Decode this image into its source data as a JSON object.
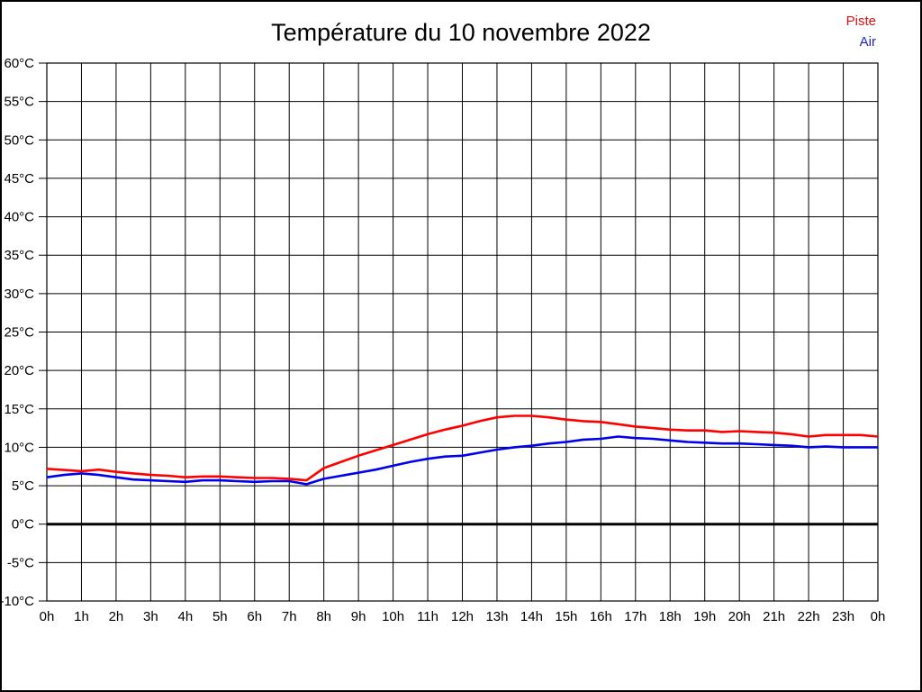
{
  "page": {
    "title": "Température du 10 novembre 2022",
    "background_color": "#ffffff",
    "border_color": "#000000"
  },
  "legend": {
    "position": "top-right",
    "items": [
      {
        "label": "Piste",
        "color": "#dd1111"
      },
      {
        "label": "Air",
        "color": "#2222cc"
      }
    ]
  },
  "chart_data": {
    "type": "line",
    "title": "Température du 10 novembre 2022",
    "xlabel": "",
    "ylabel": "",
    "xlim": [
      0,
      24
    ],
    "ylim": [
      -10,
      60
    ],
    "grid": true,
    "grid_color": "#000000",
    "x_unit": "hours",
    "y_unit": "°C",
    "zero_line": {
      "value": 0,
      "color": "#000000",
      "width": 3
    },
    "y_ticks": [
      {
        "value": 60,
        "label": "60°C"
      },
      {
        "value": 55,
        "label": "55°C"
      },
      {
        "value": 50,
        "label": "50°C"
      },
      {
        "value": 45,
        "label": "45°C"
      },
      {
        "value": 40,
        "label": "40°C"
      },
      {
        "value": 35,
        "label": "35°C"
      },
      {
        "value": 30,
        "label": "30°C"
      },
      {
        "value": 25,
        "label": "25°C"
      },
      {
        "value": 20,
        "label": "20°C"
      },
      {
        "value": 15,
        "label": "15°C"
      },
      {
        "value": 10,
        "label": "10°C"
      },
      {
        "value": 5,
        "label": "5°C"
      },
      {
        "value": 0,
        "label": "0°C"
      },
      {
        "value": -5,
        "label": "-5°C"
      },
      {
        "value": -10,
        "label": "-10°C"
      }
    ],
    "x_ticks": [
      {
        "hour": 0,
        "label": "0h"
      },
      {
        "hour": 1,
        "label": "1h"
      },
      {
        "hour": 2,
        "label": "2h"
      },
      {
        "hour": 3,
        "label": "3h"
      },
      {
        "hour": 4,
        "label": "4h"
      },
      {
        "hour": 5,
        "label": "5h"
      },
      {
        "hour": 6,
        "label": "6h"
      },
      {
        "hour": 7,
        "label": "7h"
      },
      {
        "hour": 8,
        "label": "8h"
      },
      {
        "hour": 9,
        "label": "9h"
      },
      {
        "hour": 10,
        "label": "10h"
      },
      {
        "hour": 11,
        "label": "11h"
      },
      {
        "hour": 12,
        "label": "12h"
      },
      {
        "hour": 13,
        "label": "13h"
      },
      {
        "hour": 14,
        "label": "14h"
      },
      {
        "hour": 15,
        "label": "15h"
      },
      {
        "hour": 16,
        "label": "16h"
      },
      {
        "hour": 17,
        "label": "17h"
      },
      {
        "hour": 18,
        "label": "18h"
      },
      {
        "hour": 19,
        "label": "19h"
      },
      {
        "hour": 20,
        "label": "20h"
      },
      {
        "hour": 21,
        "label": "21h"
      },
      {
        "hour": 22,
        "label": "22h"
      },
      {
        "hour": 23,
        "label": "23h"
      },
      {
        "hour": 24,
        "label": "0h"
      }
    ],
    "x": [
      0,
      0.5,
      1,
      1.5,
      2,
      2.5,
      3,
      3.5,
      4,
      4.5,
      5,
      5.5,
      6,
      6.5,
      7,
      7.5,
      8,
      8.5,
      9,
      9.5,
      10,
      10.5,
      11,
      11.5,
      12,
      12.5,
      13,
      13.5,
      14,
      14.5,
      15,
      15.5,
      16,
      16.5,
      17,
      17.5,
      18,
      18.5,
      19,
      19.5,
      20,
      20.5,
      21,
      21.5,
      22,
      22.5,
      23,
      23.5,
      24
    ],
    "series": [
      {
        "name": "Piste",
        "color": "#ff0000",
        "values": [
          7.2,
          7.05,
          6.9,
          7.1,
          6.8,
          6.6,
          6.4,
          6.3,
          6.1,
          6.2,
          6.2,
          6.1,
          6.0,
          6.0,
          5.9,
          5.7,
          7.3,
          8.1,
          8.9,
          9.6,
          10.3,
          11.0,
          11.7,
          12.3,
          12.8,
          13.4,
          13.9,
          14.1,
          14.1,
          13.9,
          13.6,
          13.4,
          13.3,
          13.0,
          12.7,
          12.5,
          12.3,
          12.2,
          12.2,
          12.0,
          12.1,
          12.0,
          11.9,
          11.7,
          11.4,
          11.6,
          11.6,
          11.6,
          11.4
        ]
      },
      {
        "name": "Air",
        "color": "#0000ee",
        "values": [
          6.1,
          6.4,
          6.6,
          6.4,
          6.1,
          5.8,
          5.7,
          5.6,
          5.5,
          5.7,
          5.7,
          5.6,
          5.5,
          5.6,
          5.6,
          5.2,
          5.9,
          6.3,
          6.7,
          7.1,
          7.6,
          8.1,
          8.5,
          8.8,
          8.9,
          9.3,
          9.7,
          10.0,
          10.2,
          10.5,
          10.7,
          11.0,
          11.1,
          11.4,
          11.2,
          11.1,
          10.9,
          10.7,
          10.6,
          10.5,
          10.5,
          10.4,
          10.3,
          10.2,
          10.0,
          10.1,
          10.0,
          10.0,
          10.0
        ]
      }
    ],
    "legend_position": "top-right"
  }
}
